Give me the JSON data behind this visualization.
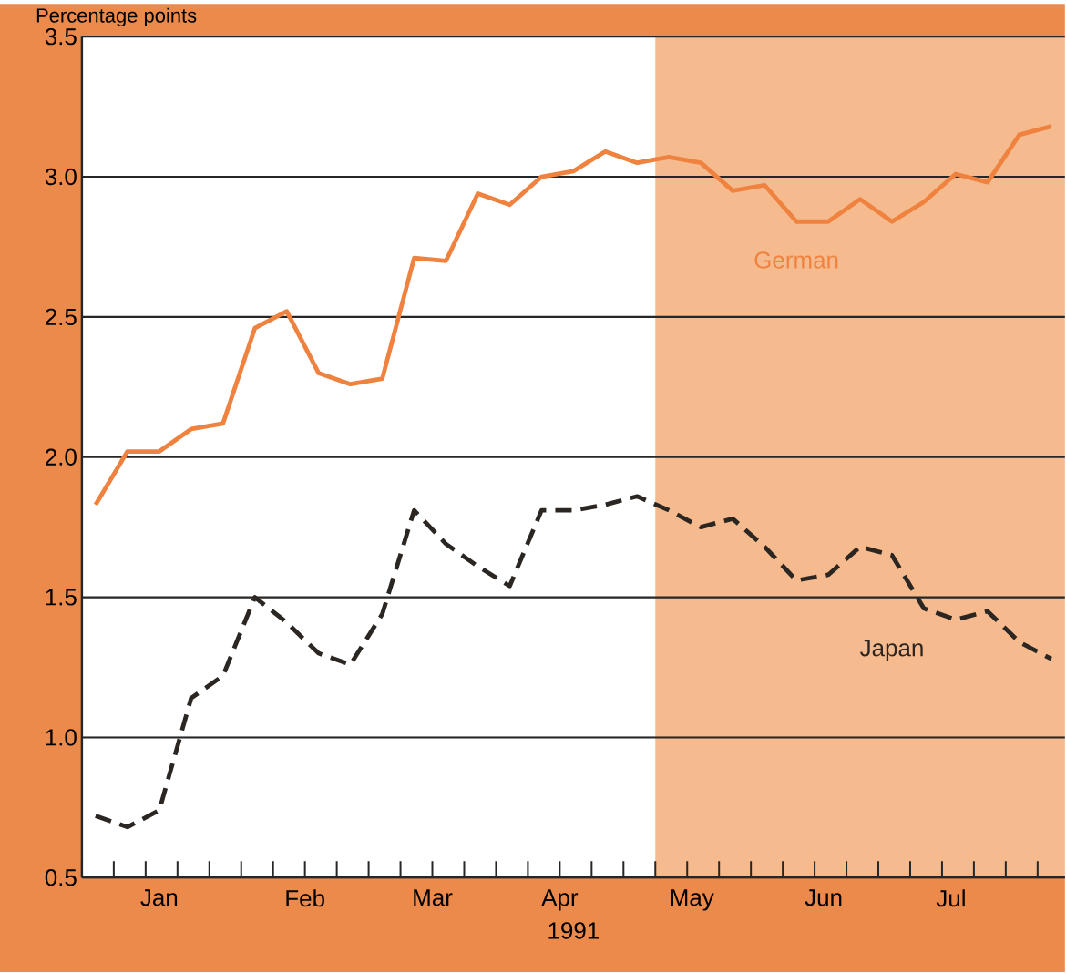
{
  "chart_data": {
    "type": "line",
    "ylabel": "Percentage points",
    "xlabel": "1991",
    "x": [
      "1991-01-04",
      "1991-01-11",
      "1991-01-18",
      "1991-01-25",
      "1991-02-01",
      "1991-02-08",
      "1991-02-15",
      "1991-02-22",
      "1991-03-01",
      "1991-03-08",
      "1991-03-15",
      "1991-03-22",
      "1991-03-29",
      "1991-04-05",
      "1991-04-12",
      "1991-04-19",
      "1991-04-26",
      "1991-05-03",
      "1991-05-10",
      "1991-05-17",
      "1991-05-24",
      "1991-05-31",
      "1991-06-07",
      "1991-06-14",
      "1991-06-21",
      "1991-06-28",
      "1991-07-05",
      "1991-07-12",
      "1991-07-19",
      "1991-07-26",
      "1991-08-02"
    ],
    "series": [
      {
        "name": "German",
        "color": "#f0823f",
        "line_style": "solid",
        "values": [
          1.83,
          2.02,
          2.02,
          2.1,
          2.12,
          2.46,
          2.52,
          2.3,
          2.26,
          2.28,
          2.71,
          2.7,
          2.94,
          2.9,
          3.0,
          3.02,
          3.09,
          3.05,
          3.07,
          3.05,
          2.95,
          2.97,
          2.84,
          2.84,
          2.92,
          2.84,
          2.91,
          3.01,
          2.98,
          3.15,
          3.18
        ]
      },
      {
        "name": "Japan",
        "color": "#2b2622",
        "line_style": "dashed",
        "values": [
          0.72,
          0.68,
          0.74,
          1.14,
          1.22,
          1.5,
          1.41,
          1.3,
          1.26,
          1.44,
          1.81,
          1.69,
          1.61,
          1.54,
          1.81,
          1.81,
          1.83,
          1.86,
          1.81,
          1.75,
          1.78,
          1.68,
          1.56,
          1.58,
          1.68,
          1.65,
          1.46,
          1.42,
          1.45,
          1.34,
          1.28
        ]
      }
    ],
    "xlim": [
      "1991-01-01",
      "1991-08-05"
    ],
    "xticks": [
      {
        "value": "1991-01-01",
        "label": null
      },
      {
        "value": "1991-01-08",
        "label": null
      },
      {
        "value": "1991-01-15",
        "label": null
      },
      {
        "value": "1991-01-22",
        "label": null
      },
      {
        "value": "1991-01-29",
        "label": null
      },
      {
        "value": "1991-02-05",
        "label": null
      },
      {
        "value": "1991-02-12",
        "label": null
      },
      {
        "value": "1991-02-19",
        "label": null
      },
      {
        "value": "1991-02-26",
        "label": null
      },
      {
        "value": "1991-03-05",
        "label": null
      },
      {
        "value": "1991-03-12",
        "label": null
      },
      {
        "value": "1991-03-19",
        "label": null
      },
      {
        "value": "1991-03-26",
        "label": null
      },
      {
        "value": "1991-04-02",
        "label": null
      },
      {
        "value": "1991-04-09",
        "label": null
      },
      {
        "value": "1991-04-16",
        "label": null
      },
      {
        "value": "1991-04-23",
        "label": null
      },
      {
        "value": "1991-04-30",
        "label": null
      },
      {
        "value": "1991-05-07",
        "label": null
      },
      {
        "value": "1991-05-14",
        "label": null
      },
      {
        "value": "1991-05-21",
        "label": null
      },
      {
        "value": "1991-05-28",
        "label": null
      },
      {
        "value": "1991-06-04",
        "label": null
      },
      {
        "value": "1991-06-11",
        "label": null
      },
      {
        "value": "1991-06-18",
        "label": null
      },
      {
        "value": "1991-06-25",
        "label": null
      },
      {
        "value": "1991-07-02",
        "label": null
      },
      {
        "value": "1991-07-09",
        "label": null
      },
      {
        "value": "1991-07-16",
        "label": null
      },
      {
        "value": "1991-07-23",
        "label": null
      },
      {
        "value": "1991-07-30",
        "label": null
      },
      {
        "value": "1991-01-18",
        "label": "Jan"
      },
      {
        "value": "1991-02-19",
        "label": "Feb"
      },
      {
        "value": "1991-03-19",
        "label": "Mar"
      },
      {
        "value": "1991-04-16",
        "label": "Apr"
      },
      {
        "value": "1991-05-15",
        "label": "May"
      },
      {
        "value": "1991-06-13",
        "label": "Jun"
      },
      {
        "value": "1991-07-11",
        "label": "Jul"
      }
    ],
    "ylim": [
      0.5,
      3.5
    ],
    "yticks": [
      0.5,
      {
        "value": 1,
        "label": "1.0"
      },
      1.5,
      {
        "value": 2,
        "label": "2.0"
      },
      2.5,
      {
        "value": 3,
        "label": "3.0"
      },
      3.5
    ],
    "bands": [
      {
        "axis": "x",
        "from": "1991-05-07",
        "to": "1991-08-05",
        "color": "#f5bb8f"
      }
    ],
    "grid": "y",
    "legend": false
  }
}
